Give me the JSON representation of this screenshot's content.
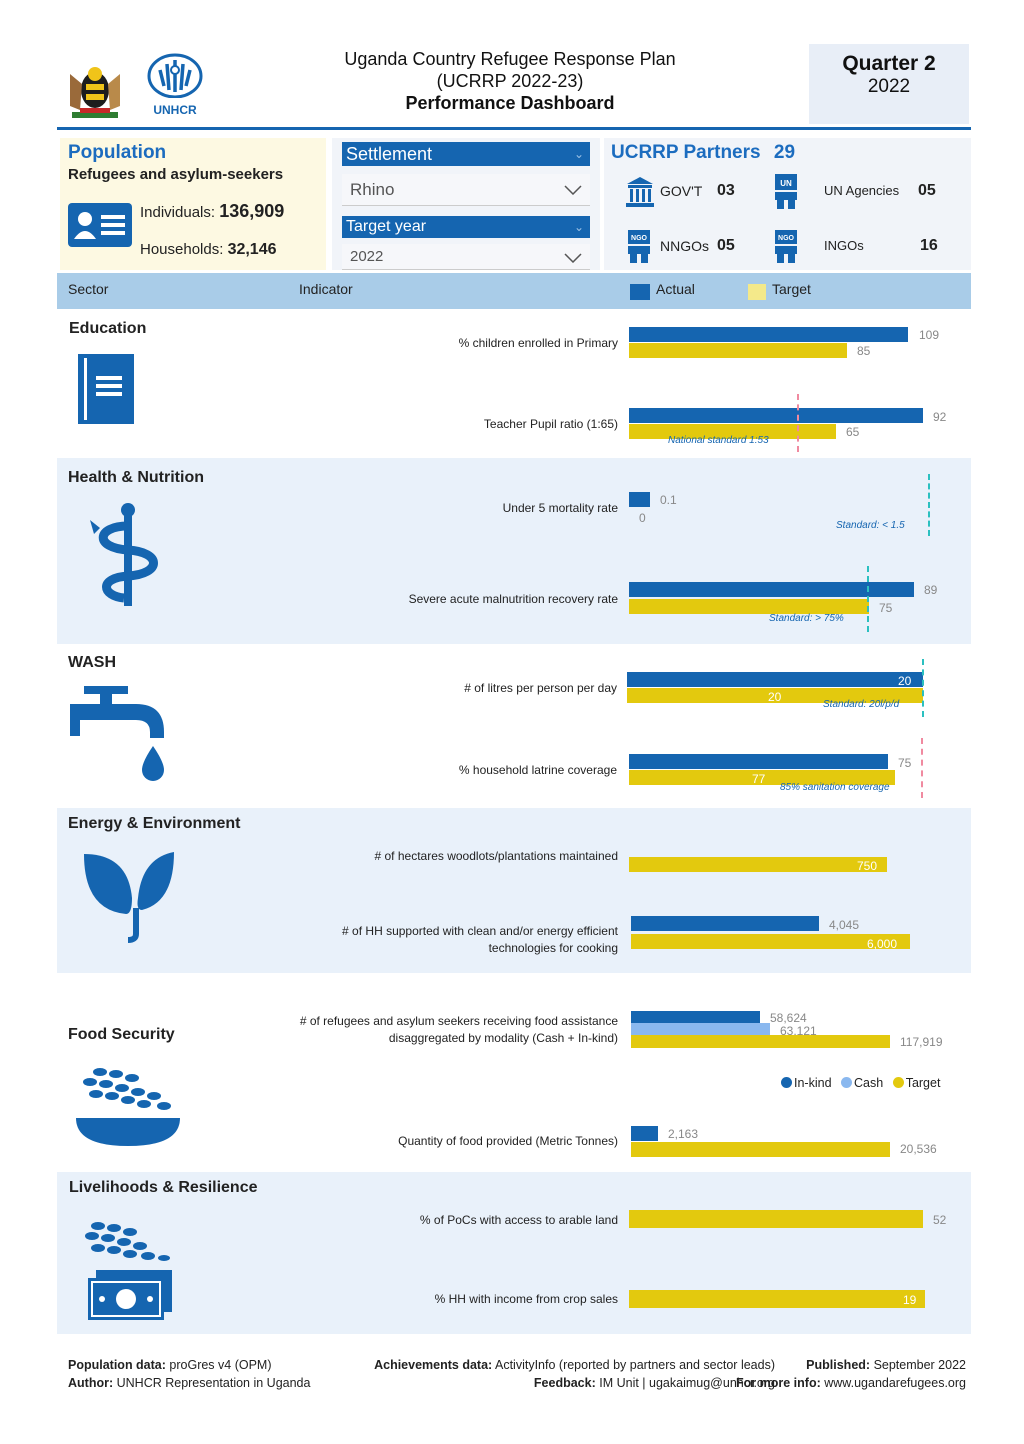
{
  "header": {
    "title_line1": "Uganda Country Refugee Response Plan",
    "title_line2": "(UCRRP 2022-23)",
    "title_line3": "Performance Dashboard",
    "quarter": "Quarter 2",
    "year": "2022",
    "unhcr_logo_text": "UNHCR"
  },
  "population": {
    "title": "Population",
    "subtitle": "Refugees and asylum-seekers",
    "individuals_label": "Individuals:",
    "individuals_value": "136,909",
    "households_label": "Households:",
    "households_value": "32,146"
  },
  "filters": {
    "settlement_label": "Settlement",
    "settlement_value": "Rhino",
    "target_year_label": "Target year",
    "target_year_value": "2022"
  },
  "partners": {
    "title": "UCRRP Partners",
    "total": "29",
    "items": [
      {
        "label": "GOV'T",
        "value": "03",
        "icon": "government-building-icon"
      },
      {
        "label": "UN Agencies",
        "value": "05",
        "icon": "un-person-icon"
      },
      {
        "label": "NNGOs",
        "value": "05",
        "icon": "ngo-person-icon"
      },
      {
        "label": "INGOs",
        "value": "16",
        "icon": "ngo-person-icon"
      }
    ]
  },
  "columns": {
    "sector": "Sector",
    "indicator": "Indicator",
    "actual": "Actual",
    "target": "Target"
  },
  "colors": {
    "actual": "#1565b0",
    "target": "#e3c90e",
    "cash": "#8ab8ef",
    "band": "#e9f1fa"
  },
  "sectors": {
    "education": {
      "name": "Education",
      "icon": "notebook-icon",
      "ind1": {
        "label": "% children enrolled in Primary",
        "actual": "109",
        "target": "85"
      },
      "ind2": {
        "label": "Teacher Pupil ratio (1:65)",
        "actual": "92",
        "target": "65",
        "note": "National standard 1:53"
      }
    },
    "health": {
      "name": "Health & Nutrition",
      "icon": "caduceus-icon",
      "ind1": {
        "label": "Under 5 mortality rate",
        "actual": "0.1",
        "target": "0",
        "note": "Standard: < 1.5"
      },
      "ind2": {
        "label": "Severe acute malnutrition recovery rate",
        "actual": "89",
        "target": "75",
        "note": "Standard: > 75%"
      }
    },
    "wash": {
      "name": "WASH",
      "icon": "water-tap-icon",
      "ind1": {
        "label": "# of litres per person per day",
        "actual": "20",
        "target": "20",
        "note": "Standard: 20l/p/d"
      },
      "ind2": {
        "label": "% household latrine coverage",
        "actual": "75",
        "target": "77",
        "note": "85% sanitation coverage"
      }
    },
    "energy": {
      "name": "Energy & Environment",
      "icon": "leaves-icon",
      "ind1": {
        "label": "# of hectares woodlots/plantations maintained",
        "target": "750"
      },
      "ind2": {
        "label_line1": "# of HH supported with clean and/or energy efficient",
        "label_line2": "technologies for cooking",
        "actual": "4,045",
        "target": "6,000"
      }
    },
    "food": {
      "name": "Food Security",
      "icon": "grain-bowl-icon",
      "ind1": {
        "label_line1": "# of refugees and asylum seekers receiving food assistance",
        "label_line2": "disaggregated by modality (Cash + In-kind)",
        "inkind": "58,624",
        "cash": "63,121",
        "target": "117,919"
      },
      "legend": {
        "inkind": "In-kind",
        "cash": "Cash",
        "target": "Target"
      },
      "ind2": {
        "label": "Quantity of food provided (Metric Tonnes)",
        "actual": "2,163",
        "target": "20,536"
      }
    },
    "livelihoods": {
      "name": "Livelihoods & Resilience",
      "icon": "grain-money-icon",
      "ind1": {
        "label": "% of PoCs with access to arable land",
        "target": "52"
      },
      "ind2": {
        "label": "% HH with income from crop sales",
        "target": "19"
      }
    }
  },
  "footer": {
    "pop_data_label": "Population data:",
    "pop_data_value": "proGres v4 (OPM)",
    "author_label": "Author:",
    "author_value": "UNHCR Representation in Uganda",
    "ach_label": "Achievements data:",
    "ach_value": "ActivityInfo (reported by partners and sector leads)",
    "feedback_label": "Feedback:",
    "feedback_value": "IM Unit | ugakaimug@unhcr.org",
    "published_label": "Published:",
    "published_value": "September 2022",
    "info_label": "For more info:",
    "info_value": "www.ugandarefugees.org"
  }
}
